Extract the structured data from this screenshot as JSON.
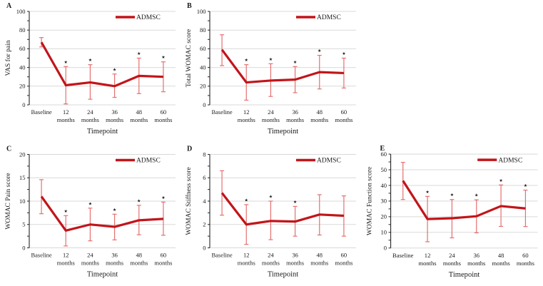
{
  "figure": {
    "legend_label": "ADMSC",
    "xlabel": "Timepoint",
    "categories": [
      "Baseline",
      "12 months",
      "24 months",
      "36 months",
      "48 months",
      "60 months"
    ],
    "colors": {
      "line": "#c1151a",
      "error_bar": "#e57070",
      "gridline": "#d9d9d9",
      "axis": "#262626",
      "star": "#1a1a1a"
    },
    "star_symbol": "★"
  },
  "chart_data": [
    {
      "panel": "A",
      "type": "line",
      "title": "",
      "ylabel": "VAS for pain",
      "xlabel": "Timepoint",
      "ylim": [
        0,
        100
      ],
      "yticks": [
        0,
        20,
        40,
        60,
        80,
        100
      ],
      "grid": true,
      "legend_position": "top-right",
      "categories": [
        "Baseline",
        "12 months",
        "24 months",
        "36 months",
        "48 months",
        "60 months"
      ],
      "series": [
        {
          "name": "ADMSC",
          "values": [
            67,
            21,
            24,
            20,
            31,
            30
          ],
          "err_low": [
            62,
            1,
            6,
            8,
            12,
            14
          ],
          "err_high": [
            72,
            41,
            43,
            33,
            50,
            46
          ]
        }
      ],
      "significance": [
        false,
        true,
        true,
        true,
        true,
        true
      ]
    },
    {
      "panel": "B",
      "type": "line",
      "title": "",
      "ylabel": "Total WOMAC score",
      "xlabel": "Timepoint",
      "ylim": [
        0,
        100
      ],
      "yticks": [
        0,
        20,
        40,
        60,
        80,
        100
      ],
      "grid": true,
      "legend_position": "top-right",
      "categories": [
        "Baseline",
        "12 months",
        "24 months",
        "36 months",
        "48 months",
        "60 months"
      ],
      "series": [
        {
          "name": "ADMSC",
          "values": [
            59,
            24,
            26,
            27,
            35,
            34
          ],
          "err_low": [
            42,
            5,
            9,
            13,
            17,
            18
          ],
          "err_high": [
            75,
            43,
            44,
            41,
            53,
            50
          ]
        }
      ],
      "significance": [
        false,
        true,
        true,
        true,
        true,
        true
      ]
    },
    {
      "panel": "C",
      "type": "line",
      "title": "",
      "ylabel": "WOMAC Pain score",
      "xlabel": "Timepoint",
      "ylim": [
        0,
        20
      ],
      "yticks": [
        0,
        5,
        10,
        15,
        20
      ],
      "grid": true,
      "legend_position": "top-right",
      "categories": [
        "Baseline",
        "12 months",
        "24 months",
        "36 months",
        "48 months",
        "60 months"
      ],
      "series": [
        {
          "name": "ADMSC",
          "values": [
            11,
            3.7,
            5,
            4.5,
            5.9,
            6.2
          ],
          "err_low": [
            7.3,
            0.4,
            1.5,
            1.7,
            2.8,
            2.7
          ],
          "err_high": [
            14.6,
            6.9,
            8.5,
            7.2,
            9.1,
            9.8
          ]
        }
      ],
      "significance": [
        false,
        true,
        true,
        true,
        true,
        true
      ]
    },
    {
      "panel": "D",
      "type": "line",
      "title": "",
      "ylabel": "WOMAC Stiffness score",
      "xlabel": "Timepoint",
      "ylim": [
        0,
        8
      ],
      "yticks": [
        0,
        2,
        4,
        6,
        8
      ],
      "grid": true,
      "legend_position": "top-right",
      "categories": [
        "Baseline",
        "12 months",
        "24 months",
        "36 months",
        "48 months",
        "60 months"
      ],
      "series": [
        {
          "name": "ADMSC",
          "values": [
            4.7,
            2,
            2.3,
            2.25,
            2.85,
            2.75
          ],
          "err_low": [
            2.8,
            0.3,
            0.7,
            1,
            1.1,
            1
          ],
          "err_high": [
            6.6,
            3.7,
            4,
            3.55,
            4.55,
            4.45
          ]
        }
      ],
      "significance": [
        false,
        true,
        true,
        true,
        false,
        false
      ]
    },
    {
      "panel": "E",
      "type": "line",
      "title": "",
      "ylabel": "WOMAC Function score",
      "xlabel": "Timepoint",
      "ylim": [
        0,
        60
      ],
      "yticks": [
        0,
        10,
        20,
        30,
        40,
        50,
        60
      ],
      "grid": true,
      "legend_position": "top-right",
      "categories": [
        "Baseline",
        "12 months",
        "24 months",
        "36 months",
        "48 months",
        "60 months"
      ],
      "series": [
        {
          "name": "ADMSC",
          "values": [
            43,
            18.5,
            19,
            20.3,
            26.8,
            25.3
          ],
          "err_low": [
            31,
            4,
            6.5,
            9.7,
            13.8,
            13.7
          ],
          "err_high": [
            54.7,
            33,
            31,
            30.8,
            40.3,
            37
          ]
        }
      ],
      "significance": [
        false,
        true,
        true,
        true,
        true,
        true
      ]
    }
  ]
}
